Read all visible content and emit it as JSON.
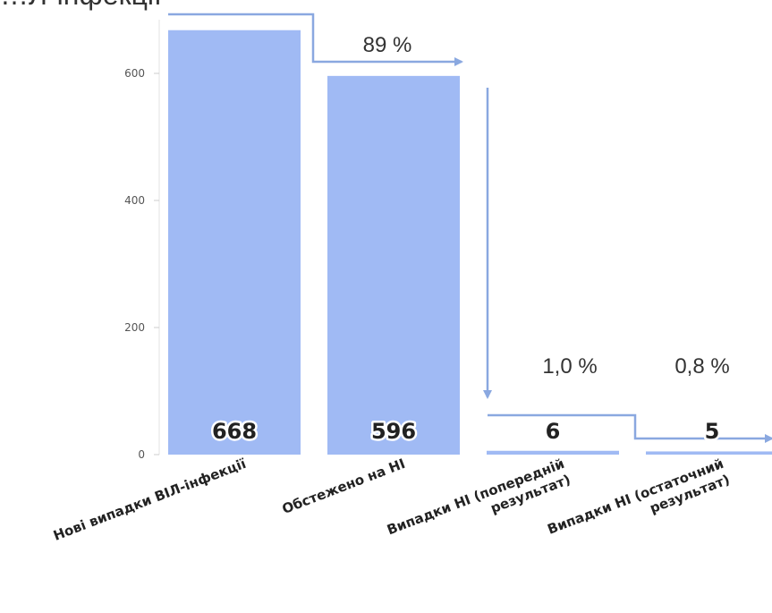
{
  "chart_data": {
    "type": "bar",
    "title": "…Л-інфекції",
    "categories": [
      [
        "Нові випадки ВІЛ-інфекції"
      ],
      [
        "Обстежено на НІ"
      ],
      [
        "Випадки НІ (попередній",
        "результат)"
      ],
      [
        "Випадки НІ (остаточний",
        "результат)"
      ]
    ],
    "values": [
      668,
      596,
      6,
      5
    ],
    "value_labels": [
      "668",
      "596",
      "6",
      "5"
    ],
    "percent_labels": [
      "89 %",
      "1,0 %",
      "0,8 %"
    ],
    "y_ticks": [
      "0",
      "200",
      "400",
      "600"
    ],
    "ylim": [
      0,
      700
    ],
    "bar_color": "#a0baf4",
    "arrow_color": "#8aa8e0",
    "grid": false
  }
}
